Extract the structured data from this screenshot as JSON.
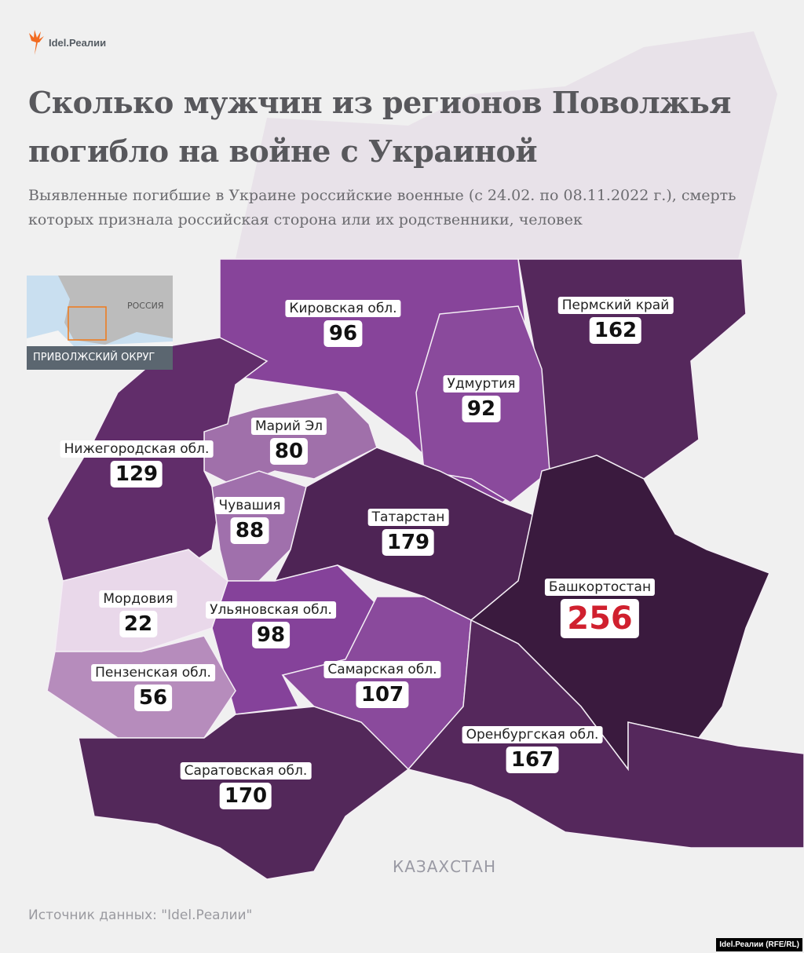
{
  "logo": {
    "text": "Idel.Реалии"
  },
  "title": "Сколько мужчин из регионов Поволжья погибло на войне с Украиной",
  "subtitle": "Выявленные погибшие в Украине российские военные (с 24.02. по 08.11.2022 г.), смерть которых признала российская сторона или их родственники, человек",
  "inset": {
    "country_label": "РОССИЯ",
    "caption": "ПРИВОЛЖСКИЙ ОКРУГ",
    "highlight_color": "#f07a1a"
  },
  "regions": [
    {
      "name": "Кировская обл.",
      "value": "96",
      "color": "#87449a"
    },
    {
      "name": "Пермский край",
      "value": "162",
      "color": "#55285c"
    },
    {
      "name": "Удмуртия",
      "value": "92",
      "color": "#8a4a9c"
    },
    {
      "name": "Марий Эл",
      "value": "80",
      "color": "#a070aa"
    },
    {
      "name": "Нижегородская обл.",
      "value": "129",
      "color": "#612d6a"
    },
    {
      "name": "Чувашия",
      "value": "88",
      "color": "#a070ac"
    },
    {
      "name": "Татарстан",
      "value": "179",
      "color": "#4e2455"
    },
    {
      "name": "Башкортостан",
      "value": "256",
      "color": "#3a1a3e"
    },
    {
      "name": "Мордовия",
      "value": "22",
      "color": "#e9d8ea"
    },
    {
      "name": "Ульяновская обл.",
      "value": "98",
      "color": "#85429a"
    },
    {
      "name": "Пензенская обл.",
      "value": "56",
      "color": "#b68cbc"
    },
    {
      "name": "Самарская обл.",
      "value": "107",
      "color": "#8a4a9c"
    },
    {
      "name": "Оренбургская обл.",
      "value": "167",
      "color": "#55285c"
    },
    {
      "name": "Саратовская обл.",
      "value": "170",
      "color": "#53285a"
    }
  ],
  "neighbor_label": "КАЗАХСТАН",
  "source": "Источник данных: \"Idel.Реалии\"",
  "credit": "Idel.Реалии (RFE/RL)",
  "colors": {
    "highlight_value": "#d0202e",
    "background": "#f0f0f0"
  }
}
